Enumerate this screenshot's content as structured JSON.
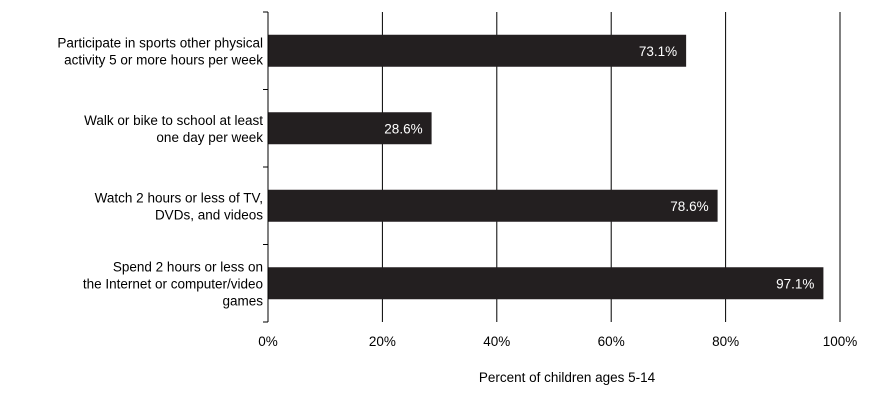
{
  "chart_data": {
    "type": "bar",
    "orientation": "horizontal",
    "categories": [
      [
        "Participate in sports other physical",
        "activity 5 or more hours per week"
      ],
      [
        "Walk or bike to school at least",
        "one day per week"
      ],
      [
        "Watch 2 hours or less of TV,",
        "DVDs, and videos"
      ],
      [
        "Spend 2 hours or less on",
        "the Internet or computer/video",
        "games"
      ]
    ],
    "values": [
      73.1,
      28.6,
      78.6,
      97.1
    ],
    "data_labels": [
      "73.1%",
      "28.6%",
      "78.6%",
      "97.1%"
    ],
    "xlim": [
      0,
      100
    ],
    "xticks": [
      "0%",
      "20%",
      "40%",
      "60%",
      "80%",
      "100%"
    ],
    "xlabel": "Percent of children ages 5-14",
    "ylabel": "",
    "title": "",
    "grid": "vertical",
    "legend": "none",
    "colors": {
      "bar": "#231f20",
      "grid": "#000000",
      "data_label": "#ffffff"
    }
  }
}
